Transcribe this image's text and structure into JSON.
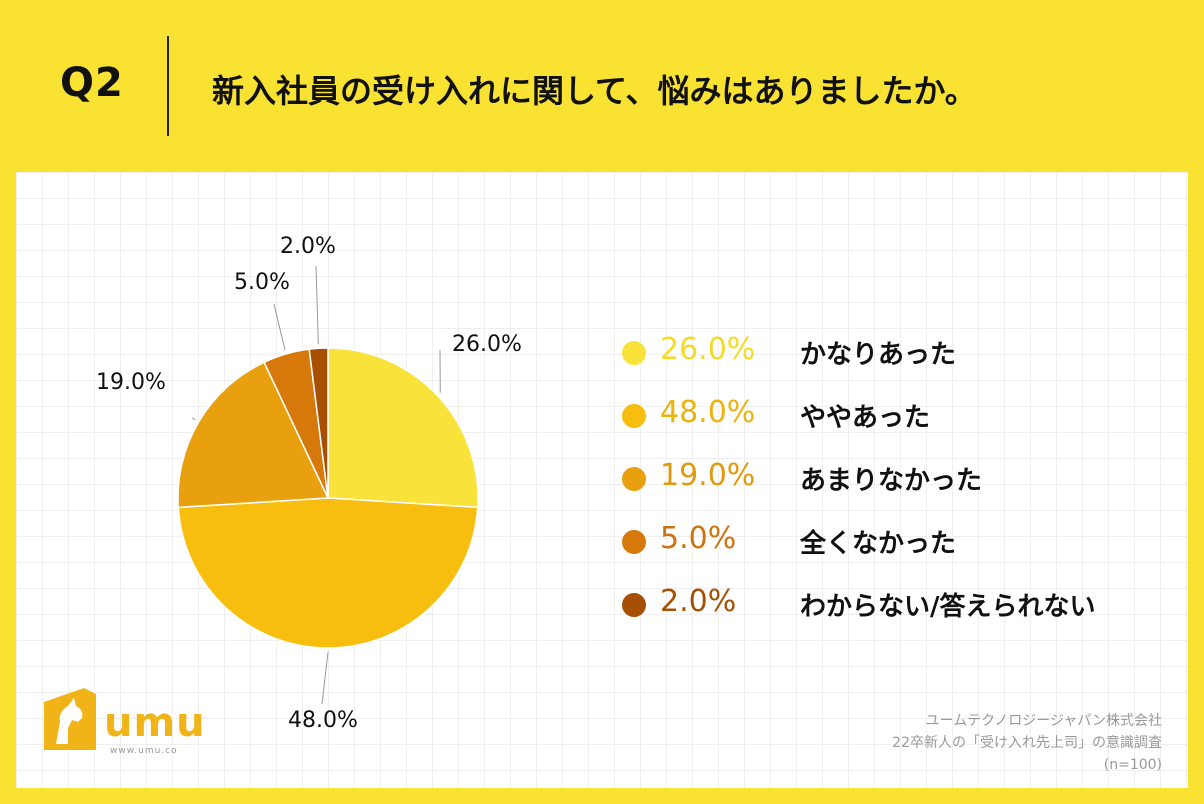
{
  "header": {
    "question": "Q2",
    "title": "新入社員の受け入れに関して、悩みはありましたか。"
  },
  "chart_data": {
    "type": "pie",
    "labels": [
      "かなりあった",
      "ややあった",
      "あまりなかった",
      "全くなかった",
      "わからない/答えられない"
    ],
    "values": [
      26.0,
      48.0,
      19.0,
      5.0,
      2.0
    ],
    "value_labels": [
      "26.0%",
      "48.0%",
      "19.0%",
      "5.0%",
      "2.0%"
    ],
    "colors": [
      "#F9E239",
      "#F7BD0F",
      "#E8A00E",
      "#D7790A",
      "#A75004"
    ],
    "legend_value_colors": [
      "#F5DB26",
      "#EDB20C",
      "#DF9A0E",
      "#CB7410",
      "#A75004"
    ],
    "start_angle_deg": 0,
    "direction": "clockwise",
    "legend_position": "right"
  },
  "logo": {
    "text": "umu",
    "url": "www.umu.co"
  },
  "footer": {
    "company": "ユームテクノロジージャパン株式会社",
    "survey": "22卒新人の「受け入れ先上司」の意識調査",
    "sample": "(n=100)"
  }
}
